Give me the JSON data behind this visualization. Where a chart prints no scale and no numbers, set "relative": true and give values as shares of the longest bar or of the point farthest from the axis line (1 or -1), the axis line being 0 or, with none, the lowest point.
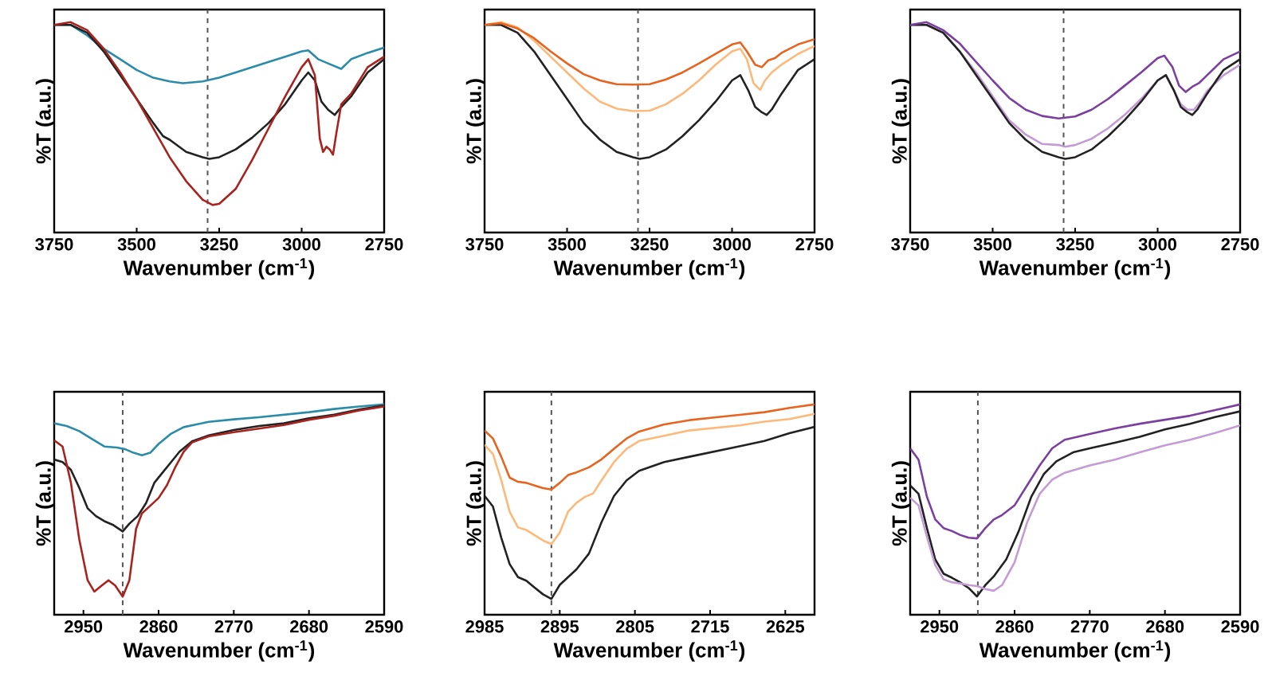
{
  "chart_data": [
    {
      "type": "line",
      "relative": true,
      "xlabel": "Wavenumber (cm$^{-1}$)",
      "ylabel": "%T (a.u.)",
      "xlim": [
        3750,
        2750
      ],
      "xticks": [
        3750,
        3500,
        3250,
        3000,
        2750
      ],
      "tick_labels": "x",
      "ref_lines": [
        {
          "axis": "x",
          "value": 3285,
          "color": "#555555",
          "line_style": "dashed"
        }
      ],
      "series": [
        {
          "color": "#2a8ca8",
          "x": [
            3750,
            3700,
            3650,
            3600,
            3550,
            3500,
            3450,
            3400,
            3360,
            3300,
            3250,
            3200,
            3150,
            3100,
            3050,
            3000,
            2980,
            2950,
            2920,
            2880,
            2850,
            2800,
            2750
          ],
          "values": [
            0.987,
            0.987,
            0.937,
            0.874,
            0.824,
            0.773,
            0.736,
            0.718,
            0.71,
            0.718,
            0.736,
            0.761,
            0.786,
            0.811,
            0.836,
            0.861,
            0.866,
            0.824,
            0.804,
            0.778,
            0.824,
            0.854,
            0.879
          ]
        },
        {
          "color": "#222222",
          "x": [
            3750,
            3700,
            3650,
            3600,
            3550,
            3500,
            3450,
            3420,
            3400,
            3350,
            3300,
            3280,
            3250,
            3200,
            3150,
            3100,
            3050,
            3000,
            2980,
            2960,
            2940,
            2920,
            2900,
            2880,
            2850,
            2800,
            2750
          ],
          "values": [
            0.987,
            0.987,
            0.95,
            0.861,
            0.748,
            0.635,
            0.521,
            0.458,
            0.441,
            0.383,
            0.358,
            0.35,
            0.358,
            0.395,
            0.451,
            0.521,
            0.61,
            0.723,
            0.761,
            0.723,
            0.622,
            0.584,
            0.559,
            0.597,
            0.647,
            0.761,
            0.824
          ]
        },
        {
          "color": "#a8231e",
          "x": [
            3750,
            3700,
            3650,
            3600,
            3550,
            3500,
            3450,
            3400,
            3350,
            3300,
            3270,
            3250,
            3200,
            3150,
            3100,
            3050,
            3000,
            2980,
            2960,
            2945,
            2935,
            2925,
            2915,
            2905,
            2895,
            2880,
            2850,
            2800,
            2750
          ],
          "values": [
            0.987,
            1.0,
            0.962,
            0.874,
            0.761,
            0.635,
            0.496,
            0.358,
            0.244,
            0.156,
            0.131,
            0.136,
            0.207,
            0.345,
            0.496,
            0.647,
            0.786,
            0.824,
            0.748,
            0.446,
            0.383,
            0.408,
            0.395,
            0.37,
            0.471,
            0.61,
            0.66,
            0.786,
            0.836
          ]
        }
      ]
    },
    {
      "type": "line",
      "relative": true,
      "xlabel": "Wavenumber (cm$^{-1}$)",
      "ylabel": "%T (a.u.)",
      "xlim": [
        3750,
        2750
      ],
      "xticks": [
        3750,
        3500,
        3250,
        3000,
        2750
      ],
      "tick_labels": "x",
      "ref_lines": [
        {
          "axis": "x",
          "value": 3285,
          "color": "#555555",
          "line_style": "dashed"
        }
      ],
      "series": [
        {
          "color": "#222222",
          "x": [
            3750,
            3700,
            3650,
            3600,
            3550,
            3500,
            3450,
            3400,
            3350,
            3300,
            3280,
            3250,
            3200,
            3150,
            3100,
            3050,
            3000,
            2975,
            2950,
            2930,
            2910,
            2895,
            2880,
            2850,
            2800,
            2750
          ],
          "values": [
            0.987,
            0.987,
            0.95,
            0.861,
            0.748,
            0.635,
            0.521,
            0.441,
            0.383,
            0.358,
            0.35,
            0.358,
            0.395,
            0.458,
            0.534,
            0.622,
            0.723,
            0.748,
            0.673,
            0.597,
            0.572,
            0.559,
            0.584,
            0.66,
            0.773,
            0.824
          ]
        },
        {
          "color": "#fdb97a",
          "x": [
            3750,
            3700,
            3650,
            3600,
            3550,
            3500,
            3450,
            3400,
            3350,
            3300,
            3250,
            3200,
            3150,
            3100,
            3050,
            3000,
            2975,
            2955,
            2935,
            2915,
            2900,
            2880,
            2850,
            2800,
            2750
          ],
          "values": [
            0.987,
            1.0,
            0.975,
            0.912,
            0.836,
            0.761,
            0.685,
            0.622,
            0.589,
            0.577,
            0.579,
            0.61,
            0.66,
            0.723,
            0.798,
            0.861,
            0.874,
            0.824,
            0.71,
            0.678,
            0.723,
            0.761,
            0.798,
            0.849,
            0.887
          ]
        },
        {
          "color": "#e8641e",
          "x": [
            3750,
            3700,
            3650,
            3600,
            3550,
            3500,
            3450,
            3400,
            3350,
            3300,
            3250,
            3200,
            3150,
            3100,
            3050,
            3000,
            2975,
            2955,
            2930,
            2910,
            2890,
            2870,
            2850,
            2800,
            2750
          ],
          "values": [
            0.987,
            0.995,
            0.97,
            0.924,
            0.861,
            0.804,
            0.753,
            0.723,
            0.705,
            0.703,
            0.705,
            0.728,
            0.761,
            0.804,
            0.849,
            0.894,
            0.904,
            0.861,
            0.798,
            0.786,
            0.819,
            0.829,
            0.854,
            0.894,
            0.919
          ]
        }
      ]
    },
    {
      "type": "line",
      "relative": true,
      "xlabel": "Wavenumber (cm$^{-1}$)",
      "ylabel": "%T (a.u.)",
      "xlim": [
        3750,
        2750
      ],
      "xticks": [
        3750,
        3500,
        3250,
        3000,
        2750
      ],
      "tick_labels": "x",
      "ref_lines": [
        {
          "axis": "x",
          "value": 3285,
          "color": "#555555",
          "line_style": "dashed"
        }
      ],
      "series": [
        {
          "color": "#c49bd4",
          "x": [
            3750,
            3700,
            3650,
            3600,
            3550,
            3500,
            3450,
            3400,
            3350,
            3300,
            3280,
            3250,
            3200,
            3150,
            3100,
            3050,
            3000,
            2975,
            2950,
            2930,
            2910,
            2890,
            2870,
            2850,
            2800,
            2750
          ],
          "values": [
            0.987,
            0.987,
            0.95,
            0.861,
            0.761,
            0.647,
            0.534,
            0.466,
            0.421,
            0.416,
            0.408,
            0.416,
            0.446,
            0.496,
            0.559,
            0.635,
            0.723,
            0.748,
            0.673,
            0.61,
            0.584,
            0.584,
            0.622,
            0.673,
            0.748,
            0.798
          ]
        },
        {
          "color": "#222222",
          "x": [
            3750,
            3700,
            3650,
            3600,
            3550,
            3500,
            3450,
            3400,
            3350,
            3300,
            3280,
            3250,
            3200,
            3150,
            3100,
            3050,
            3000,
            2975,
            2950,
            2930,
            2910,
            2895,
            2880,
            2850,
            2800,
            2750
          ],
          "values": [
            0.987,
            0.987,
            0.95,
            0.861,
            0.748,
            0.635,
            0.521,
            0.441,
            0.383,
            0.358,
            0.35,
            0.358,
            0.395,
            0.458,
            0.534,
            0.622,
            0.723,
            0.748,
            0.673,
            0.597,
            0.572,
            0.559,
            0.584,
            0.66,
            0.773,
            0.824
          ]
        },
        {
          "color": "#7b3fa0",
          "x": [
            3750,
            3700,
            3650,
            3600,
            3550,
            3500,
            3450,
            3400,
            3350,
            3300,
            3250,
            3200,
            3150,
            3100,
            3050,
            3000,
            2980,
            2955,
            2935,
            2915,
            2895,
            2875,
            2850,
            2800,
            2750
          ],
          "values": [
            0.987,
            1.0,
            0.962,
            0.899,
            0.811,
            0.723,
            0.64,
            0.584,
            0.554,
            0.542,
            0.552,
            0.584,
            0.635,
            0.698,
            0.761,
            0.829,
            0.841,
            0.786,
            0.698,
            0.668,
            0.693,
            0.71,
            0.748,
            0.824,
            0.861
          ]
        }
      ]
    },
    {
      "type": "line",
      "relative": true,
      "xlabel": "Wavenumber (cm$^{-1}$)",
      "ylabel": "%T (a.u.)",
      "xlim": [
        2985,
        2590
      ],
      "xticks": [
        2950,
        2860,
        2770,
        2680,
        2590
      ],
      "tick_labels": "x",
      "ref_lines": [
        {
          "axis": "x",
          "value": 2903,
          "color": "#555555",
          "line_style": "dashed"
        }
      ],
      "series": [
        {
          "color": "#2a8ca8",
          "x": [
            2985,
            2970,
            2955,
            2940,
            2925,
            2910,
            2900,
            2890,
            2880,
            2870,
            2860,
            2845,
            2830,
            2800,
            2770,
            2740,
            2710,
            2680,
            2650,
            2620,
            2590
          ],
          "values": [
            0.91,
            0.897,
            0.873,
            0.836,
            0.8,
            0.795,
            0.787,
            0.77,
            0.758,
            0.77,
            0.812,
            0.861,
            0.892,
            0.917,
            0.929,
            0.939,
            0.951,
            0.963,
            0.978,
            0.99,
            1.0
          ]
        },
        {
          "color": "#222222",
          "x": [
            2985,
            2975,
            2965,
            2955,
            2945,
            2935,
            2925,
            2915,
            2903,
            2895,
            2885,
            2875,
            2865,
            2855,
            2845,
            2835,
            2820,
            2800,
            2770,
            2740,
            2710,
            2680,
            2650,
            2620,
            2590
          ],
          "values": [
            0.738,
            0.726,
            0.689,
            0.604,
            0.506,
            0.469,
            0.445,
            0.428,
            0.396,
            0.433,
            0.469,
            0.531,
            0.628,
            0.677,
            0.726,
            0.775,
            0.824,
            0.853,
            0.878,
            0.897,
            0.91,
            0.934,
            0.951,
            0.976,
            0.995
          ]
        },
        {
          "color": "#a8231e",
          "x": [
            2985,
            2975,
            2965,
            2955,
            2945,
            2937,
            2928,
            2920,
            2912,
            2903,
            2895,
            2887,
            2880,
            2870,
            2860,
            2850,
            2840,
            2830,
            2820,
            2800,
            2770,
            2740,
            2710,
            2680,
            2650,
            2620,
            2590
          ],
          "values": [
            0.829,
            0.8,
            0.628,
            0.359,
            0.164,
            0.11,
            0.139,
            0.164,
            0.139,
            0.086,
            0.164,
            0.408,
            0.482,
            0.518,
            0.555,
            0.616,
            0.702,
            0.775,
            0.819,
            0.848,
            0.868,
            0.885,
            0.902,
            0.927,
            0.946,
            0.971,
            0.99
          ]
        }
      ]
    },
    {
      "type": "line",
      "relative": true,
      "xlabel": "Wavenumber (cm$^{-1}$)",
      "ylabel": "%T (a.u.)",
      "xlim": [
        2985,
        2590
      ],
      "xticks": [
        2985,
        2895,
        2805,
        2715,
        2625
      ],
      "tick_labels": "x",
      "ref_lines": [
        {
          "axis": "x",
          "value": 2905,
          "color": "#555555",
          "line_style": "dashed"
        }
      ],
      "series": [
        {
          "color": "#e8641e",
          "x": [
            2985,
            2975,
            2965,
            2955,
            2945,
            2935,
            2925,
            2915,
            2905,
            2895,
            2885,
            2875,
            2860,
            2845,
            2830,
            2815,
            2800,
            2770,
            2740,
            2710,
            2680,
            2650,
            2620,
            2590
          ],
          "values": [
            0.876,
            0.838,
            0.751,
            0.652,
            0.632,
            0.627,
            0.614,
            0.602,
            0.595,
            0.627,
            0.664,
            0.677,
            0.701,
            0.739,
            0.789,
            0.838,
            0.871,
            0.905,
            0.925,
            0.938,
            0.95,
            0.963,
            0.983,
            1.0
          ]
        },
        {
          "color": "#fdb97a",
          "x": [
            2985,
            2975,
            2965,
            2955,
            2945,
            2935,
            2925,
            2915,
            2905,
            2895,
            2885,
            2875,
            2865,
            2855,
            2845,
            2830,
            2815,
            2800,
            2770,
            2740,
            2710,
            2680,
            2650,
            2620,
            2590
          ],
          "values": [
            0.808,
            0.764,
            0.639,
            0.49,
            0.415,
            0.403,
            0.378,
            0.353,
            0.336,
            0.391,
            0.49,
            0.532,
            0.56,
            0.577,
            0.639,
            0.726,
            0.789,
            0.826,
            0.851,
            0.876,
            0.888,
            0.9,
            0.918,
            0.93,
            0.955
          ]
        },
        {
          "color": "#222222",
          "x": [
            2985,
            2975,
            2965,
            2955,
            2945,
            2935,
            2925,
            2915,
            2905,
            2895,
            2885,
            2875,
            2860,
            2845,
            2830,
            2815,
            2800,
            2770,
            2740,
            2710,
            2680,
            2650,
            2620,
            2590
          ],
          "values": [
            0.565,
            0.515,
            0.366,
            0.241,
            0.179,
            0.162,
            0.129,
            0.097,
            0.075,
            0.142,
            0.179,
            0.216,
            0.291,
            0.44,
            0.565,
            0.639,
            0.684,
            0.726,
            0.751,
            0.776,
            0.801,
            0.826,
            0.863,
            0.893
          ]
        }
      ]
    },
    {
      "type": "line",
      "relative": true,
      "xlabel": "Wavenumber (cm$^{-1}$)",
      "ylabel": "%T (a.u.)",
      "xlim": [
        2985,
        2590
      ],
      "xticks": [
        2950,
        2860,
        2770,
        2680,
        2590
      ],
      "tick_labels": "x",
      "ref_lines": [
        {
          "axis": "x",
          "value": 2904,
          "color": "#555555",
          "line_style": "dashed"
        }
      ],
      "series": [
        {
          "color": "#7b3fa0",
          "x": [
            2985,
            2975,
            2965,
            2955,
            2945,
            2935,
            2925,
            2915,
            2905,
            2895,
            2885,
            2875,
            2860,
            2845,
            2830,
            2815,
            2800,
            2770,
            2740,
            2710,
            2680,
            2650,
            2620,
            2590
          ],
          "values": [
            0.791,
            0.737,
            0.561,
            0.453,
            0.412,
            0.398,
            0.379,
            0.366,
            0.363,
            0.412,
            0.453,
            0.474,
            0.52,
            0.615,
            0.71,
            0.791,
            0.832,
            0.859,
            0.886,
            0.908,
            0.927,
            0.946,
            0.973,
            1.0
          ]
        },
        {
          "color": "#222222",
          "x": [
            2985,
            2975,
            2965,
            2955,
            2945,
            2935,
            2925,
            2915,
            2905,
            2895,
            2885,
            2870,
            2855,
            2840,
            2825,
            2810,
            2790,
            2770,
            2740,
            2710,
            2680,
            2650,
            2620,
            2590
          ],
          "values": [
            0.615,
            0.575,
            0.412,
            0.263,
            0.195,
            0.176,
            0.154,
            0.127,
            0.087,
            0.141,
            0.182,
            0.263,
            0.398,
            0.561,
            0.669,
            0.729,
            0.772,
            0.791,
            0.818,
            0.846,
            0.881,
            0.908,
            0.94,
            0.967
          ]
        },
        {
          "color": "#c49bd4",
          "x": [
            2985,
            2975,
            2965,
            2955,
            2945,
            2935,
            2925,
            2915,
            2905,
            2895,
            2885,
            2875,
            2860,
            2845,
            2830,
            2815,
            2800,
            2770,
            2740,
            2710,
            2680,
            2650,
            2620,
            2590
          ],
          "values": [
            0.556,
            0.52,
            0.371,
            0.236,
            0.168,
            0.154,
            0.149,
            0.141,
            0.136,
            0.122,
            0.114,
            0.141,
            0.249,
            0.439,
            0.575,
            0.642,
            0.675,
            0.71,
            0.737,
            0.772,
            0.805,
            0.832,
            0.864,
            0.9
          ]
        }
      ]
    }
  ]
}
